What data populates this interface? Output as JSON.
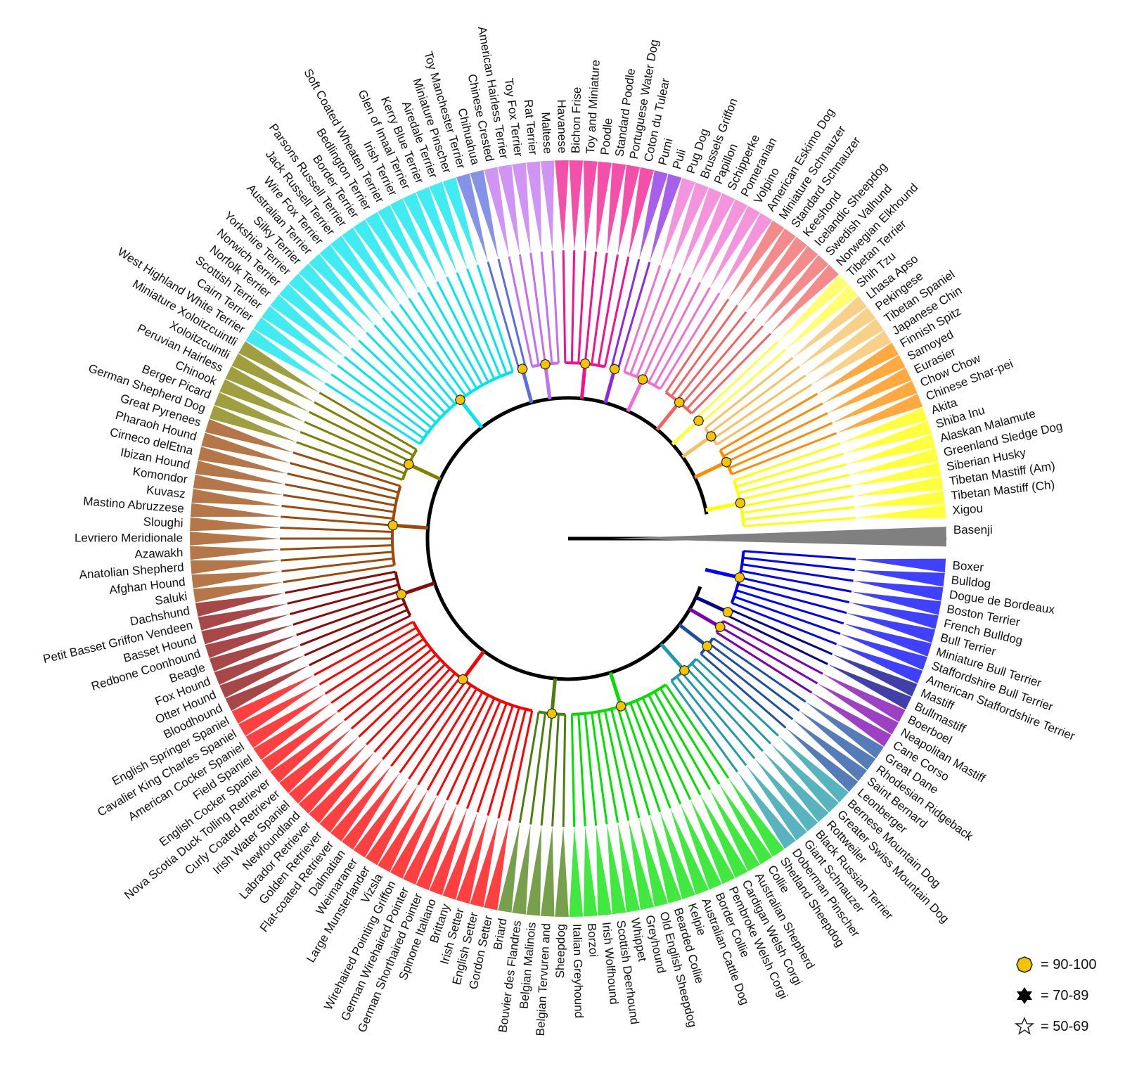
{
  "tree": {
    "outgroup": "Basenji",
    "clades": [
      {
        "color": "#0000ff",
        "breeds": [
          "Boxer",
          "Bulldog",
          "Dogue de Bordeaux",
          "Boston Terrier",
          "French Bulldog",
          "Bull Terrier",
          "Miniature Bull Terrier",
          "Staffordshire Bull Terrier",
          "American Staffordshire Terrier"
        ]
      },
      {
        "color": "#00008b",
        "breeds": [
          "Mastiff",
          "Bullmastiff"
        ]
      },
      {
        "color": "#7b00b0",
        "breeds": [
          "Boerboel",
          "Neapolitan Mastiff",
          "Cane Corso"
        ]
      },
      {
        "color": "#1c4fa0",
        "breeds": [
          "Great Dane",
          "Rhodesian Ridgeback",
          "Saint Bernard",
          "Leonberger"
        ]
      },
      {
        "color": "#1f9aa8",
        "breeds": [
          "Bernese Mountain Dog",
          "Greater Swiss Mountain Dog",
          "Rottweiler",
          "Black Russian Terrier",
          "Giant Schnauzer",
          "Doberman Pinscher"
        ]
      },
      {
        "color": "#00e000",
        "breeds": [
          "Shetland Sheepdog",
          "Collie",
          "Australian Shepherd",
          "Cardigan Welsh Corgi",
          "Pembroke Welsh Corgi",
          "Border Collie",
          "Australian Cattle Dog",
          "Kelpie",
          "Bearded Collie",
          "Old English Sheepdog",
          "Greyhound",
          "Whippet",
          "Scottish Deerhound",
          "Irish Wolfhound",
          "Borzoi",
          "Italian Greyhound"
        ]
      },
      {
        "color": "#4a7f10",
        "breeds": [
          "Sheepdog",
          "Belgian Tervuren and",
          "Belgian Malinois",
          "Bouvier des Flandres",
          "Briard"
        ]
      },
      {
        "color": "#ff0000",
        "breeds": [
          "Gordon Setter",
          "English Setter",
          "Irish Setter",
          "Brittany",
          "Spinone Italiano",
          "German Shorthaired Pointer",
          "German Wirehaired Pointer",
          "Wirehaired Pointing Griffon",
          "Vizsla",
          "Large Munsterlander",
          "Weimaraner",
          "Dalmatian",
          "Flat-coated Retriever",
          "Golden Retriever",
          "Labrador Retriever",
          "Newfoundland",
          "Irish Water Spaniel",
          "Curly Coated Retriever",
          "Nova Scotia Duck Tolling Retriever",
          "English Cocker Spaniel",
          "Field Spaniel",
          "American Cocker Spaniel",
          "Cavalier King Charles Spaniel",
          "English Springer Spaniel"
        ]
      },
      {
        "color": "#8b0a0a",
        "breeds": [
          "Bloodhound",
          "Otter Hound",
          "Fox Hound",
          "Beagle",
          "Redbone Coonhound",
          "Basset Hound",
          "Petit Basset Griffon Vendeen",
          "Dachshund"
        ]
      },
      {
        "color": "#9c4a0a",
        "breeds": [
          "Saluki",
          "Afghan Hound",
          "Anatolian Shepherd",
          "Azawakh",
          "Levriero Meridionale",
          "Sloughi",
          "Mastino Abruzzese",
          "Kuvasz",
          "Komondor",
          "Ibizan Hound",
          "Cirneco delEtna",
          "Pharaoh Hound",
          "Great Pyrenees"
        ]
      },
      {
        "color": "#7f7f00",
        "breeds": [
          "German Shepherd Dog",
          "Berger Picard",
          "Chinook",
          "Peruvian Hairless",
          "Xoloitzcuintli",
          "Miniature Xoloitzcuintli"
        ]
      },
      {
        "color": "#00e5ee",
        "breeds": [
          "West Highland White Terrier",
          "Cairn Terrier",
          "Scottish Terrier",
          "Norfolk Terrier",
          "Norwich Terrier",
          "Yorkshire Terrier",
          "Silky Terrier",
          "Australian Terrier",
          "Wire Fox Terrier",
          "Jack Russell Terrier",
          "Parsons Russell Terrier",
          "Border Terrier",
          "Bedlington Terrier",
          "Soft Coated Wheaten Terrier",
          "Irish Terrier",
          "Glen of Imaal Terrier",
          "Kerry Blue Terrier",
          "Airedale Terrier",
          "Miniature Pinscher"
        ]
      },
      {
        "color": "#5b6ee0",
        "breeds": [
          "Toy Manchester Terrier",
          "Chihuahua"
        ]
      },
      {
        "color": "#c070f0",
        "breeds": [
          "Chinese Crested",
          "American Hairless Terrier",
          "Toy Fox Terrier",
          "Rat Terrier",
          "Maltese"
        ]
      },
      {
        "color": "#f0148c",
        "breeds": [
          "Havanese",
          "Bichon Frise",
          "Toy and Miniature",
          "Poodle",
          "Standard Poodle",
          "Portuguese Water Dog",
          "Coton du Tulear"
        ]
      },
      {
        "color": "#8a2be2",
        "breeds": [
          "Pumi",
          "Puli"
        ]
      },
      {
        "color": "#f070d0",
        "breeds": [
          "Pug Dog",
          "Brussels Griffon",
          "Papillon",
          "Schipperke",
          "Pomeranian",
          "Volpino",
          "American Eskimo Dog"
        ]
      },
      {
        "color": "#f06464",
        "breeds": [
          "Miniature Schnauzer",
          "Standard Schnauzer",
          "Keeshond",
          "Icelandic Sheepdog",
          "Swedish Valhund",
          "Norwegian Elkhound"
        ]
      },
      {
        "color": "#ffff40",
        "breeds": [
          "Tibetan Terrier",
          "Shih Tzu"
        ]
      },
      {
        "color": "#f5c060",
        "breeds": [
          "Lhasa Apso",
          "Pekingese",
          "Tibetan Spaniel",
          "Japanese Chin"
        ]
      },
      {
        "color": "#ff8c00",
        "breeds": [
          "Finnish Spitz",
          "Samoyed",
          "Eurasier",
          "Chow Chow",
          "Chinese Shar-pei"
        ]
      },
      {
        "color": "#ffff00",
        "breeds": [
          "Akita",
          "Shiba Inu",
          "Alaskan Malamute",
          "Greenland Sledge Dog",
          "Siberian Husky",
          "Tibetan Mastiff (Am)",
          "Tibetan Mastiff (Ch)",
          "Xigou"
        ]
      }
    ]
  },
  "legend": {
    "items": [
      {
        "symbol": "circle-marker",
        "label": "= 90-100",
        "color": "#f5c400"
      },
      {
        "symbol": "star-burst-marker",
        "label": "= 70-89",
        "color": "#000000"
      },
      {
        "symbol": "open-star-marker",
        "label": "= 50-69",
        "color": "#ffffff"
      }
    ]
  }
}
